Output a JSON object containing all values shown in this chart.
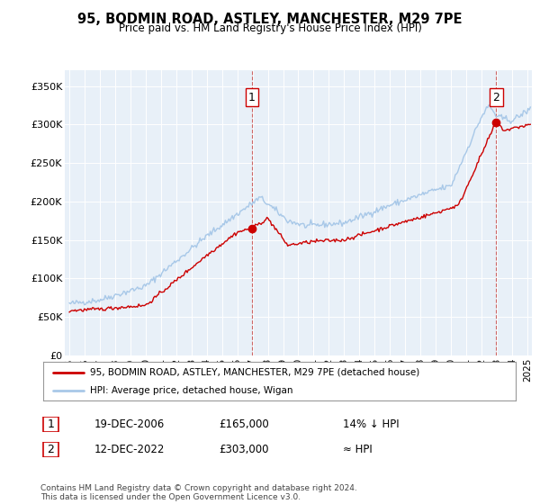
{
  "title": "95, BODMIN ROAD, ASTLEY, MANCHESTER, M29 7PE",
  "subtitle": "Price paid vs. HM Land Registry's House Price Index (HPI)",
  "sale1_date": "19-DEC-2006",
  "sale1_price": 165000,
  "sale1_label": "1",
  "sale1_year": 2006.96,
  "sale2_date": "12-DEC-2022",
  "sale2_price": 303000,
  "sale2_label": "2",
  "sale2_year": 2022.95,
  "hpi_color": "#a8c8e8",
  "price_color": "#cc0000",
  "dot_color": "#cc0000",
  "plot_bg": "#e8f0f8",
  "legend_label1": "95, BODMIN ROAD, ASTLEY, MANCHESTER, M29 7PE (detached house)",
  "legend_label2": "HPI: Average price, detached house, Wigan",
  "table_row1": [
    "1",
    "19-DEC-2006",
    "£165,000",
    "14% ↓ HPI"
  ],
  "table_row2": [
    "2",
    "12-DEC-2022",
    "£303,000",
    "≈ HPI"
  ],
  "footer": "Contains HM Land Registry data © Crown copyright and database right 2024.\nThis data is licensed under the Open Government Licence v3.0.",
  "ylim": [
    0,
    370000
  ],
  "xmin": 1994.7,
  "xmax": 2025.3,
  "yticks": [
    0,
    50000,
    100000,
    150000,
    200000,
    250000,
    300000,
    350000
  ],
  "ytick_labels": [
    "£0",
    "£50K",
    "£100K",
    "£150K",
    "£200K",
    "£250K",
    "£300K",
    "£350K"
  ]
}
